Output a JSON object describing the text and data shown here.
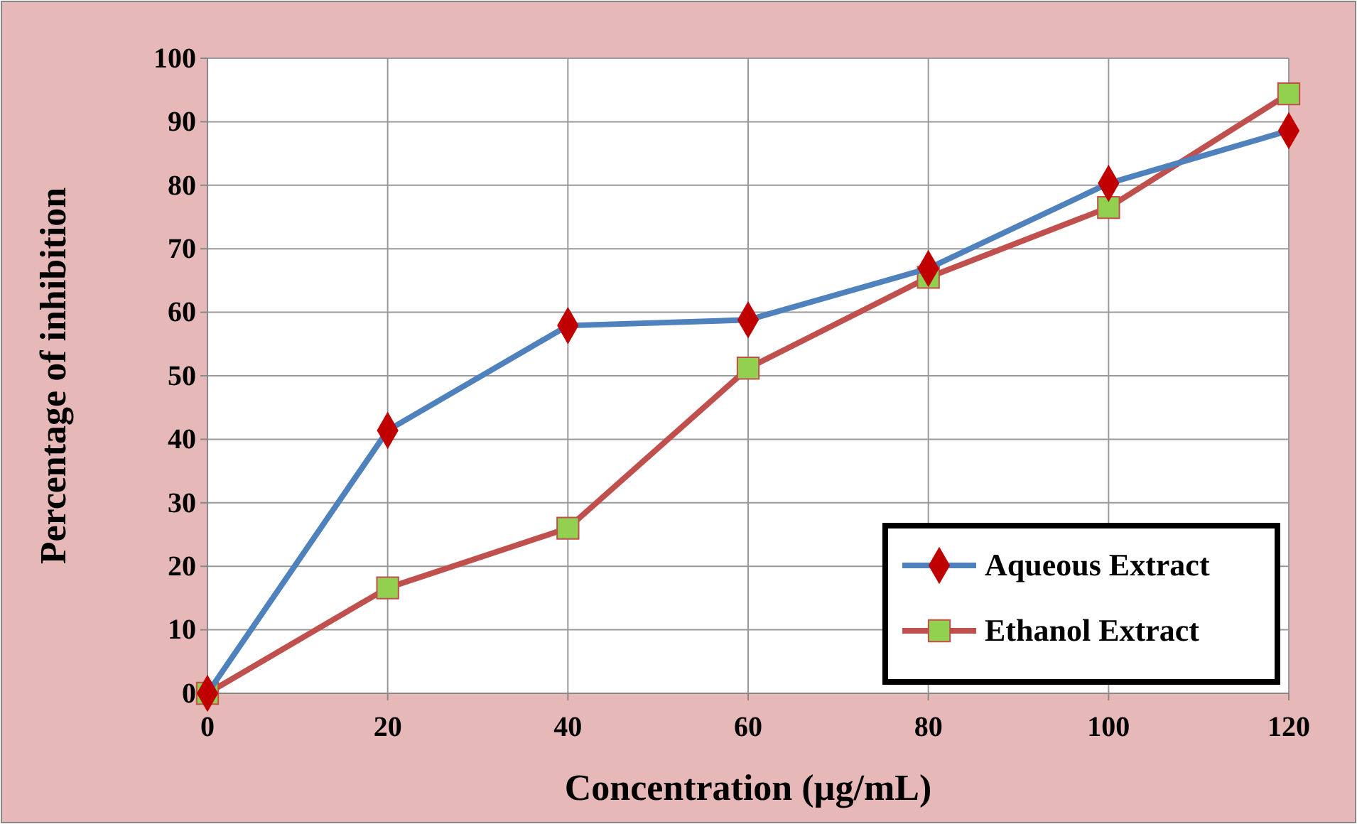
{
  "chart_data": {
    "type": "line",
    "xlabel": "Concentration (µg/mL)",
    "ylabel": "Percentage of inhibition",
    "x": [
      0,
      20,
      40,
      60,
      80,
      100,
      120
    ],
    "series": [
      {
        "name": "Aqueous Extract",
        "color": "#4f81bd",
        "marker": "diamond",
        "values": [
          0,
          41.4,
          57.9,
          58.8,
          66.9,
          80.3,
          88.6
        ]
      },
      {
        "name": "Ethanol Extract",
        "color": "#c0504d",
        "marker": "square",
        "values": [
          0,
          16.6,
          26,
          51.2,
          65.5,
          76.5,
          94.4
        ]
      }
    ],
    "xlim": [
      0,
      120
    ],
    "xticks": [
      0,
      20,
      40,
      60,
      80,
      100,
      120
    ],
    "ylim": [
      0,
      100
    ],
    "yticks": [
      0,
      10,
      20,
      30,
      40,
      50,
      60,
      70,
      80,
      90,
      100
    ],
    "grid": true,
    "legend": "bottom right",
    "line_style": "solid"
  }
}
